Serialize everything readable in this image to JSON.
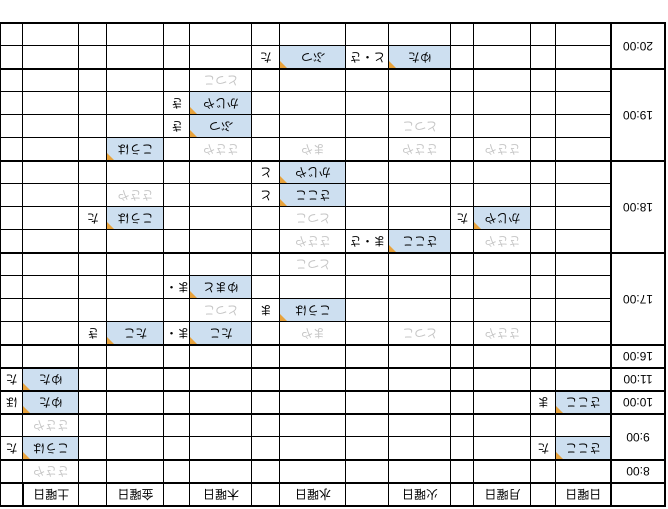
{
  "table": {
    "time_header": "",
    "days": [
      "日曜日",
      "月曜日",
      "火曜日",
      "水曜日",
      "木曜日",
      "金曜日",
      "土曜日"
    ],
    "legend": {
      "booked_meaning": "highlighted-cell-with-comment-marker",
      "pending_meaning": "gray-text"
    },
    "blocks": [
      {
        "time": "8:00",
        "rows": [
          [
            null,
            null,
            null,
            null,
            null,
            null,
            {
              "name": "ささや",
              "status": "pending"
            }
          ]
        ]
      },
      {
        "time": "9:00",
        "rows": [
          [
            {
              "name": "さここ",
              "status": "booked",
              "note": "た"
            },
            null,
            null,
            null,
            null,
            null,
            {
              "name": "こうは",
              "status": "booked",
              "note": "た"
            }
          ],
          [
            null,
            null,
            null,
            null,
            null,
            null,
            {
              "name": "ささや",
              "status": "pending"
            }
          ]
        ]
      },
      {
        "time": "10:00",
        "rows": [
          [
            {
              "name": "さここ",
              "status": "booked",
              "note": "ま"
            },
            null,
            null,
            null,
            null,
            null,
            {
              "name": "ゆた",
              "status": "booked",
              "note": "ほ"
            }
          ]
        ]
      },
      {
        "time": "11:00",
        "rows": [
          [
            null,
            null,
            null,
            null,
            null,
            null,
            {
              "name": "ゆた",
              "status": "booked",
              "note": "た"
            }
          ]
        ]
      },
      {
        "time": "16:00",
        "rows": [
          [
            null,
            null,
            null,
            null,
            null,
            null,
            null
          ]
        ]
      },
      {
        "time": "17:00",
        "rows": [
          [
            null,
            {
              "name": "ささや",
              "status": "pending"
            },
            {
              "name": "とつこ",
              "status": "pending"
            },
            {
              "name": "まや",
              "status": "pending"
            },
            {
              "name": "たこ",
              "status": "booked",
              "note": "ま・さ"
            },
            {
              "name": "たこ",
              "status": "booked",
              "note": "き"
            },
            null
          ],
          [
            null,
            null,
            null,
            {
              "name": "こうは",
              "status": "booked",
              "note": "ま"
            },
            {
              "name": "とつこ",
              "status": "pending"
            },
            null,
            null
          ],
          [
            null,
            null,
            null,
            null,
            {
              "name": "ゆまと",
              "status": "booked",
              "note": "ま・さ"
            },
            null,
            null
          ],
          [
            null,
            null,
            null,
            {
              "name": "とつこ",
              "status": "pending"
            },
            null,
            null,
            null
          ]
        ]
      },
      {
        "time": "18:00",
        "rows": [
          [
            null,
            {
              "name": "ささや",
              "status": "pending"
            },
            {
              "name": "さここ",
              "status": "booked",
              "note": "ま・さ"
            },
            {
              "name": "ささや",
              "status": "pending"
            },
            null,
            null,
            null
          ],
          [
            null,
            {
              "name": "かじや",
              "status": "booked",
              "note": "た"
            },
            null,
            {
              "name": "とつこ",
              "status": "pending"
            },
            null,
            {
              "name": "こうは",
              "status": "booked",
              "note": "た"
            },
            null
          ],
          [
            null,
            null,
            null,
            {
              "name": "さここ",
              "status": "booked",
              "note": "と"
            },
            null,
            {
              "name": "ささや",
              "status": "pending"
            },
            null
          ],
          [
            null,
            null,
            null,
            {
              "name": "かじや",
              "status": "booked",
              "note": "と"
            },
            null,
            null,
            null
          ]
        ]
      },
      {
        "time": "19:00",
        "rows": [
          [
            null,
            {
              "name": "ささや",
              "status": "pending"
            },
            {
              "name": "ささや",
              "status": "pending"
            },
            {
              "name": "まや",
              "status": "pending"
            },
            {
              "name": "ささや",
              "status": "pending"
            },
            {
              "name": "こうは",
              "status": "booked"
            },
            null
          ],
          [
            null,
            null,
            {
              "name": "とつこ",
              "status": "pending"
            },
            null,
            {
              "name": "ぶつ",
              "status": "booked",
              "note": "き"
            },
            null,
            null
          ],
          [
            null,
            null,
            null,
            null,
            {
              "name": "かじや",
              "status": "booked",
              "note": "き"
            },
            null,
            null
          ],
          [
            null,
            null,
            null,
            null,
            {
              "name": "とつこ",
              "status": "pending"
            },
            null,
            null
          ]
        ]
      },
      {
        "time": "20:00",
        "rows": [
          [
            null,
            null,
            {
              "name": "ゆた",
              "status": "booked",
              "note": "と・さ"
            },
            {
              "name": "ぶつ",
              "status": "booked",
              "note": "た"
            },
            null,
            null,
            null
          ],
          [
            null,
            null,
            null,
            null,
            null,
            null,
            null
          ]
        ]
      }
    ]
  },
  "colors": {
    "highlight_fill": "#cddff0",
    "comment_marker": "#e8a33d",
    "pending_text": "#c6c6c6",
    "grid": "#000000"
  },
  "layout_values": {
    "rotation_degrees": "180"
  }
}
